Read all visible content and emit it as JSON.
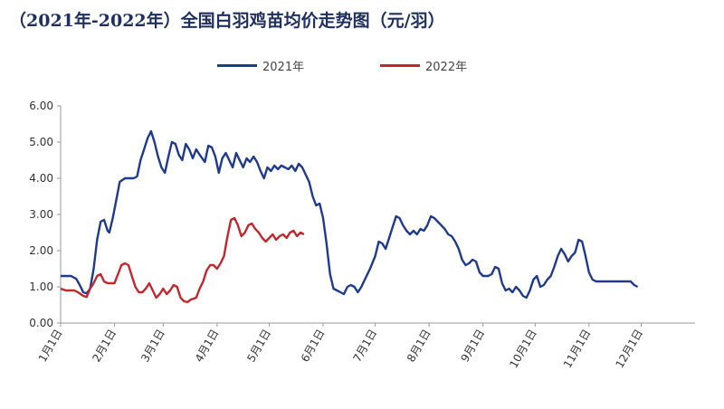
{
  "chart_data": {
    "type": "line",
    "title": "（2021年-2022年）全国白羽鸡苗均价走势图（元/羽）",
    "xlabel": "",
    "ylabel": "",
    "ylim": [
      0,
      6
    ],
    "yticks": [
      "0.00",
      "1.00",
      "2.00",
      "3.00",
      "4.00",
      "5.00",
      "6.00"
    ],
    "x_domain_days": [
      0,
      365
    ],
    "xticks": [
      {
        "label": "1月1日",
        "day": 0
      },
      {
        "label": "2月1日",
        "day": 31
      },
      {
        "label": "3月1日",
        "day": 59
      },
      {
        "label": "4月1日",
        "day": 90
      },
      {
        "label": "5月1日",
        "day": 120
      },
      {
        "label": "6月1日",
        "day": 151
      },
      {
        "label": "7月1日",
        "day": 181
      },
      {
        "label": "8月1日",
        "day": 212
      },
      {
        "label": "9月1日",
        "day": 243
      },
      {
        "label": "10月1日",
        "day": 273
      },
      {
        "label": "11月1日",
        "day": 304
      },
      {
        "label": "12月1日",
        "day": 334
      }
    ],
    "grid": false,
    "legend_position": "top-center",
    "series": [
      {
        "name": "2021年",
        "color": "#1f3a8a",
        "points": [
          [
            0,
            1.3
          ],
          [
            6,
            1.3
          ],
          [
            9,
            1.22
          ],
          [
            11,
            1.05
          ],
          [
            13,
            0.85
          ],
          [
            15,
            0.82
          ],
          [
            17,
            0.95
          ],
          [
            19,
            1.5
          ],
          [
            21,
            2.3
          ],
          [
            23,
            2.8
          ],
          [
            25,
            2.85
          ],
          [
            27,
            2.55
          ],
          [
            28,
            2.5
          ],
          [
            30,
            2.9
          ],
          [
            32,
            3.4
          ],
          [
            34,
            3.9
          ],
          [
            37,
            4.0
          ],
          [
            42,
            4.0
          ],
          [
            44,
            4.05
          ],
          [
            46,
            4.5
          ],
          [
            48,
            4.8
          ],
          [
            50,
            5.1
          ],
          [
            52,
            5.3
          ],
          [
            54,
            5.0
          ],
          [
            56,
            4.6
          ],
          [
            58,
            4.3
          ],
          [
            60,
            4.15
          ],
          [
            62,
            4.6
          ],
          [
            64,
            5.0
          ],
          [
            66,
            4.95
          ],
          [
            68,
            4.65
          ],
          [
            70,
            4.5
          ],
          [
            72,
            4.95
          ],
          [
            74,
            4.8
          ],
          [
            76,
            4.55
          ],
          [
            78,
            4.8
          ],
          [
            80,
            4.65
          ],
          [
            83,
            4.45
          ],
          [
            85,
            4.9
          ],
          [
            87,
            4.85
          ],
          [
            89,
            4.6
          ],
          [
            91,
            4.15
          ],
          [
            93,
            4.55
          ],
          [
            95,
            4.7
          ],
          [
            97,
            4.5
          ],
          [
            99,
            4.3
          ],
          [
            101,
            4.7
          ],
          [
            103,
            4.5
          ],
          [
            105,
            4.3
          ],
          [
            107,
            4.55
          ],
          [
            109,
            4.45
          ],
          [
            111,
            4.6
          ],
          [
            113,
            4.45
          ],
          [
            115,
            4.2
          ],
          [
            117,
            4.0
          ],
          [
            119,
            4.3
          ],
          [
            121,
            4.2
          ],
          [
            123,
            4.35
          ],
          [
            125,
            4.25
          ],
          [
            127,
            4.35
          ],
          [
            129,
            4.3
          ],
          [
            131,
            4.25
          ],
          [
            133,
            4.35
          ],
          [
            135,
            4.2
          ],
          [
            137,
            4.4
          ],
          [
            139,
            4.3
          ],
          [
            141,
            4.1
          ],
          [
            143,
            3.9
          ],
          [
            145,
            3.5
          ],
          [
            147,
            3.25
          ],
          [
            149,
            3.3
          ],
          [
            151,
            2.9
          ],
          [
            153,
            2.2
          ],
          [
            155,
            1.35
          ],
          [
            157,
            0.95
          ],
          [
            159,
            0.9
          ],
          [
            161,
            0.85
          ],
          [
            163,
            0.8
          ],
          [
            165,
            1.0
          ],
          [
            167,
            1.05
          ],
          [
            169,
            1.0
          ],
          [
            171,
            0.85
          ],
          [
            173,
            1.0
          ],
          [
            175,
            1.2
          ],
          [
            178,
            1.5
          ],
          [
            181,
            1.85
          ],
          [
            183,
            2.25
          ],
          [
            185,
            2.2
          ],
          [
            187,
            2.05
          ],
          [
            189,
            2.35
          ],
          [
            191,
            2.65
          ],
          [
            193,
            2.95
          ],
          [
            195,
            2.9
          ],
          [
            197,
            2.7
          ],
          [
            199,
            2.55
          ],
          [
            201,
            2.45
          ],
          [
            203,
            2.55
          ],
          [
            205,
            2.45
          ],
          [
            207,
            2.6
          ],
          [
            209,
            2.55
          ],
          [
            211,
            2.7
          ],
          [
            213,
            2.95
          ],
          [
            215,
            2.9
          ],
          [
            218,
            2.75
          ],
          [
            221,
            2.6
          ],
          [
            223,
            2.45
          ],
          [
            225,
            2.4
          ],
          [
            227,
            2.25
          ],
          [
            229,
            2.05
          ],
          [
            231,
            1.75
          ],
          [
            233,
            1.6
          ],
          [
            235,
            1.65
          ],
          [
            237,
            1.75
          ],
          [
            239,
            1.7
          ],
          [
            241,
            1.4
          ],
          [
            243,
            1.3
          ],
          [
            246,
            1.3
          ],
          [
            248,
            1.35
          ],
          [
            250,
            1.55
          ],
          [
            252,
            1.5
          ],
          [
            254,
            1.1
          ],
          [
            256,
            0.9
          ],
          [
            258,
            0.95
          ],
          [
            260,
            0.85
          ],
          [
            262,
            1.0
          ],
          [
            264,
            0.9
          ],
          [
            266,
            0.75
          ],
          [
            268,
            0.7
          ],
          [
            270,
            0.9
          ],
          [
            272,
            1.2
          ],
          [
            274,
            1.3
          ],
          [
            276,
            1.0
          ],
          [
            278,
            1.05
          ],
          [
            280,
            1.2
          ],
          [
            282,
            1.3
          ],
          [
            284,
            1.55
          ],
          [
            286,
            1.85
          ],
          [
            288,
            2.05
          ],
          [
            290,
            1.9
          ],
          [
            292,
            1.7
          ],
          [
            294,
            1.85
          ],
          [
            296,
            1.95
          ],
          [
            298,
            2.3
          ],
          [
            300,
            2.25
          ],
          [
            302,
            1.85
          ],
          [
            304,
            1.4
          ],
          [
            306,
            1.2
          ],
          [
            308,
            1.15
          ],
          [
            311,
            1.15
          ],
          [
            320,
            1.15
          ],
          [
            328,
            1.15
          ],
          [
            330,
            1.05
          ],
          [
            332,
            1.0
          ]
        ]
      },
      {
        "name": "2022年",
        "color": "#c0282d",
        "points": [
          [
            0,
            0.95
          ],
          [
            3,
            0.9
          ],
          [
            8,
            0.9
          ],
          [
            10,
            0.85
          ],
          [
            13,
            0.75
          ],
          [
            15,
            0.72
          ],
          [
            17,
            0.95
          ],
          [
            19,
            1.1
          ],
          [
            21,
            1.3
          ],
          [
            23,
            1.35
          ],
          [
            25,
            1.15
          ],
          [
            27,
            1.1
          ],
          [
            31,
            1.1
          ],
          [
            33,
            1.35
          ],
          [
            35,
            1.6
          ],
          [
            37,
            1.65
          ],
          [
            39,
            1.6
          ],
          [
            41,
            1.3
          ],
          [
            43,
            1.0
          ],
          [
            45,
            0.85
          ],
          [
            47,
            0.85
          ],
          [
            49,
            0.95
          ],
          [
            51,
            1.1
          ],
          [
            53,
            0.9
          ],
          [
            55,
            0.7
          ],
          [
            57,
            0.8
          ],
          [
            59,
            0.95
          ],
          [
            61,
            0.8
          ],
          [
            63,
            0.9
          ],
          [
            65,
            1.05
          ],
          [
            67,
            1.0
          ],
          [
            69,
            0.7
          ],
          [
            71,
            0.6
          ],
          [
            73,
            0.58
          ],
          [
            75,
            0.65
          ],
          [
            78,
            0.7
          ],
          [
            80,
            0.95
          ],
          [
            82,
            1.15
          ],
          [
            84,
            1.45
          ],
          [
            86,
            1.6
          ],
          [
            88,
            1.6
          ],
          [
            90,
            1.5
          ],
          [
            92,
            1.65
          ],
          [
            94,
            1.85
          ],
          [
            96,
            2.4
          ],
          [
            98,
            2.85
          ],
          [
            100,
            2.9
          ],
          [
            102,
            2.7
          ],
          [
            104,
            2.4
          ],
          [
            106,
            2.5
          ],
          [
            108,
            2.7
          ],
          [
            110,
            2.75
          ],
          [
            112,
            2.6
          ],
          [
            114,
            2.5
          ],
          [
            116,
            2.35
          ],
          [
            118,
            2.25
          ],
          [
            120,
            2.35
          ],
          [
            122,
            2.45
          ],
          [
            124,
            2.3
          ],
          [
            126,
            2.4
          ],
          [
            128,
            2.45
          ],
          [
            130,
            2.35
          ],
          [
            132,
            2.5
          ],
          [
            134,
            2.55
          ],
          [
            136,
            2.4
          ],
          [
            138,
            2.5
          ],
          [
            140,
            2.45
          ]
        ]
      }
    ]
  }
}
